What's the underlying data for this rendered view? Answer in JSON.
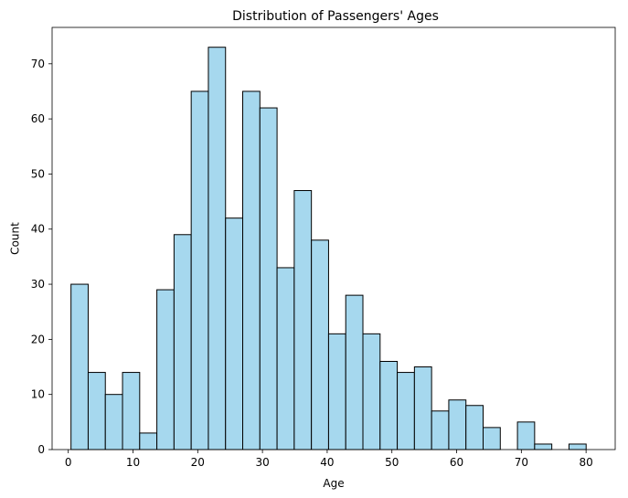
{
  "chart_data": {
    "type": "bar",
    "title": "Distribution of Passengers' Ages",
    "xlabel": "Age",
    "ylabel": "Count",
    "x_ticks": [
      0,
      10,
      20,
      30,
      40,
      50,
      60,
      70,
      80
    ],
    "y_ticks": [
      0,
      10,
      20,
      30,
      40,
      50,
      60,
      70
    ],
    "xlim": [
      -2.5,
      84.5
    ],
    "ylim": [
      0,
      76.6
    ],
    "bin_start": 0.42,
    "bin_width": 2.653,
    "values": [
      30,
      14,
      10,
      14,
      3,
      29,
      39,
      65,
      73,
      42,
      65,
      62,
      33,
      47,
      38,
      21,
      28,
      21,
      16,
      14,
      15,
      7,
      9,
      8,
      4,
      0,
      5,
      1,
      0,
      1
    ],
    "bar_color": "#a6d8ee",
    "edge_color": "#000000",
    "grid": false,
    "legend": "none"
  }
}
